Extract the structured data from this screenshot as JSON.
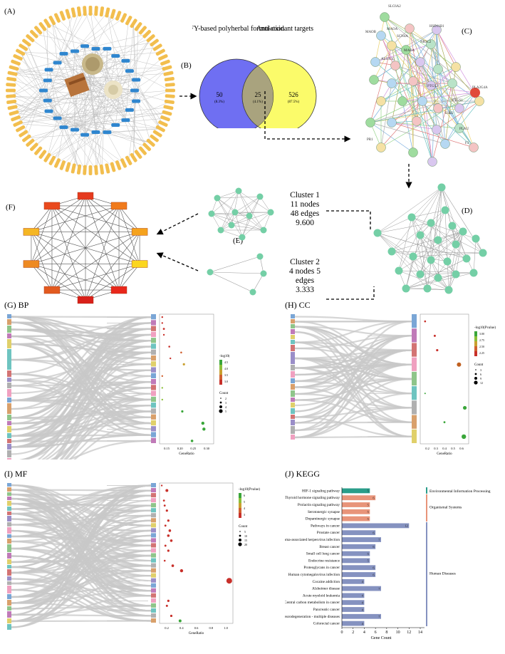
{
  "panels": {
    "A": "(A)",
    "B": "(B)",
    "C": "(C)",
    "D": "(D)",
    "E": "(E)",
    "F": "(F)",
    "G": "(G) BP",
    "H": "(H) CC",
    "I": "(I) MF",
    "J": "(J) KEGG"
  },
  "venn": {
    "left_title": "SFY-based polyherbal formulation",
    "right_title": "Anti-oxidant targets",
    "left_count": "50",
    "left_pct": "(8.3%)",
    "mid_count": "25",
    "mid_pct": "(4.1%)",
    "right_count": "526",
    "right_pct": "(87.5%)",
    "left_color": "#6f6ff2",
    "right_color": "#fbfb6a",
    "overlap_color": "#a9a37e"
  },
  "clusters": {
    "c1": {
      "title": "Cluster 1",
      "nodes": "11 nodes",
      "edges": "48 edges",
      "score": "9.600"
    },
    "c2": {
      "title": "Cluster 2",
      "nodes": "4 nodes 5",
      "edges": "edges",
      "score": "3.333"
    }
  },
  "ppi_labels": [
    "SLC6A2",
    "MAOA",
    "HSD11B1",
    "MAOB",
    "SCN4A",
    "NR3C2",
    "ALOX15",
    "MAOA",
    "PTGS2",
    "PLA2G4A",
    "PTGS1",
    "ESR2",
    "PLAU",
    "F3",
    "PR1"
  ],
  "f_ring": {
    "colors": [
      "#e53a1e",
      "#f07a1c",
      "#f5a21d",
      "#fbd61f",
      "#e8271b",
      "#d9201a",
      "#e25a1f",
      "#ee8a22",
      "#f5b623",
      "#e9491d"
    ]
  },
  "go_legends": {
    "bp": {
      "title": "-log10(Pvalue)",
      "count_title": "Count",
      "ticks": [
        "4.5",
        "4.0",
        "3.5",
        "3.0"
      ],
      "counts": [
        "2",
        "3",
        "4",
        "5"
      ],
      "xlabel": "GeneRatio",
      "xticks": [
        "0.15",
        "0.20",
        "0.25",
        "0.30"
      ]
    },
    "cc": {
      "title": "-log10(Pvalue)",
      "count_title": "Count",
      "ticks": [
        "3.00",
        "2.75",
        "2.50",
        "2.25"
      ],
      "counts": [
        "3",
        "6",
        "9",
        "12"
      ],
      "xlabel": "GeneRatio",
      "xticks": [
        "0.2",
        "0.3",
        "0.4",
        "0.5",
        "0.6"
      ]
    },
    "mf": {
      "title": "-log10(Pvalue)",
      "count_title": "Count",
      "ticks": [
        "6",
        "5",
        "4",
        "3"
      ],
      "counts": [
        "5",
        "10",
        "15",
        "20"
      ],
      "xlabel": "GeneRatio",
      "xticks": [
        "0.2",
        "0.4",
        "0.6",
        "0.8",
        "1.0"
      ]
    }
  },
  "chart_data": {
    "type": "bar",
    "title": "(J) KEGG",
    "xlabel": "Gene Count",
    "ylabel": "",
    "xlim": [
      0,
      14
    ],
    "xticks": [
      0,
      2,
      4,
      6,
      8,
      10,
      12,
      14
    ],
    "categories": [
      "HIF-1 signaling pathway",
      "Thyroid hormone signaling pathway",
      "Prolactin signaling pathway",
      "Serotonergic synapse",
      "Dopaminergic synapse",
      "Pathways in cancer",
      "Prostate cancer",
      "Kaposi sarcoma-associated herpesvirus infection",
      "Breast cancer",
      "Small cell lung cancer",
      "Endocrine resistance",
      "Proteoglycans in cancer",
      "Human cytomegalovirus infection",
      "Cocaine addiction",
      "Alzheimer disease",
      "Acute myeloid leukemia",
      "Central carbon metabolism in cancer",
      "Pancreatic cancer",
      "Pathways of neurodegeneration - multiple diseases",
      "Colorectal cancer"
    ],
    "values": [
      5,
      6,
      5,
      5,
      5,
      12,
      6,
      7,
      6,
      5,
      5,
      6,
      6,
      4,
      7,
      4,
      4,
      4,
      7,
      4
    ],
    "groups": [
      {
        "name": "Environmental Information Processing",
        "count": 1,
        "color": "#2a9d8a"
      },
      {
        "name": "Organismal Systems",
        "count": 4,
        "color": "#e8947a"
      },
      {
        "name": "Human Diseases",
        "count": 15,
        "color": "#8592c0"
      }
    ]
  }
}
